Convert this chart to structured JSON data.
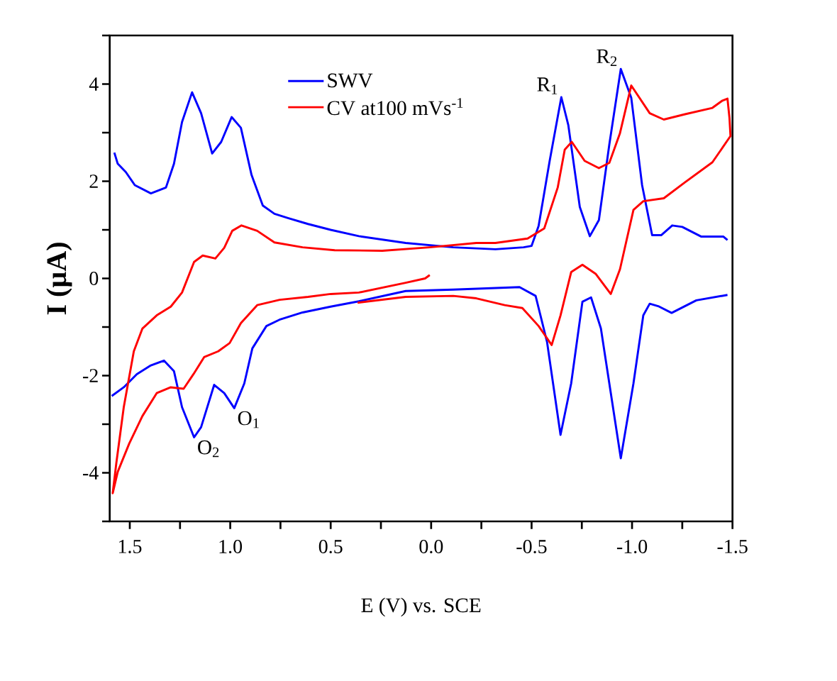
{
  "chart_data": {
    "type": "line",
    "xlabel": "E (V) vs. SCE",
    "ylabel": "I (µA)",
    "xlim": [
      1.6,
      -1.5
    ],
    "ylim": [
      -5,
      5
    ],
    "xticks": [
      1.5,
      {
        "value": 1.25,
        "label": null
      },
      {
        "value": 1,
        "label": "1.0"
      },
      {
        "value": 0.75,
        "label": null
      },
      0.5,
      {
        "value": 0.25,
        "label": null
      },
      {
        "value": 0,
        "label": "0.0"
      },
      {
        "value": -0.25,
        "label": null
      },
      -0.5,
      {
        "value": -0.75,
        "label": null
      },
      {
        "value": -1,
        "label": "-1.0"
      },
      {
        "value": -1.25,
        "label": null
      },
      -1.5
    ],
    "yticks": [
      {
        "value": -5,
        "label": null
      },
      -4,
      {
        "value": -3,
        "label": null
      },
      -2,
      {
        "value": -1,
        "label": null
      },
      0,
      {
        "value": 1,
        "label": null
      },
      2,
      {
        "value": 3,
        "label": null
      },
      4,
      {
        "value": 5,
        "label": null
      }
    ],
    "legend": "top",
    "grid": false,
    "marker": "none",
    "line_style": "solid",
    "series": [
      {
        "name": "SWV",
        "color": "#0000ff",
        "x": [
          1.577,
          1.56,
          1.52,
          1.475,
          1.395,
          1.32,
          1.28,
          1.24,
          1.19,
          1.145,
          1.09,
          1.045,
          0.993,
          0.947,
          0.894,
          0.838,
          0.78,
          0.71,
          0.613,
          0.5,
          0.36,
          0.127,
          -0.11,
          -0.32,
          -0.46,
          -0.5,
          -0.535,
          -0.59,
          -0.648,
          -0.683,
          -0.74,
          -0.79,
          -0.835,
          -0.887,
          -0.944,
          -0.996,
          -1.05,
          -1.1,
          -1.145,
          -1.2,
          -1.25,
          -1.345,
          -1.455,
          -1.475,
          null,
          1.59,
          1.53,
          1.465,
          1.395,
          1.33,
          1.28,
          1.24,
          1.18,
          1.145,
          1.08,
          1.03,
          0.98,
          0.93,
          0.89,
          0.82,
          0.755,
          0.64,
          0.5,
          0.36,
          0.127,
          -0.11,
          -0.44,
          -0.52,
          -0.577,
          -0.644,
          -0.697,
          -0.753,
          -0.796,
          -0.845,
          -0.944,
          -1.007,
          -1.056,
          -1.088,
          -1.13,
          -1.197,
          -1.32,
          -1.475
        ],
        "values": [
          2.59,
          2.36,
          2.19,
          1.92,
          1.75,
          1.87,
          2.36,
          3.22,
          3.83,
          3.4,
          2.57,
          2.81,
          3.32,
          3.1,
          2.13,
          1.5,
          1.33,
          1.24,
          1.12,
          1.0,
          0.87,
          0.73,
          0.64,
          0.6,
          0.64,
          0.67,
          1.08,
          2.42,
          3.73,
          3.15,
          1.47,
          0.87,
          1.2,
          2.76,
          4.31,
          3.72,
          1.92,
          0.89,
          0.89,
          1.09,
          1.06,
          0.86,
          0.86,
          0.79,
          null,
          -2.42,
          -2.24,
          -1.97,
          -1.79,
          -1.69,
          -1.91,
          -2.65,
          -3.27,
          -3.06,
          -2.19,
          -2.36,
          -2.67,
          -2.16,
          -1.44,
          -0.98,
          -0.85,
          -0.7,
          -0.58,
          -0.47,
          -0.26,
          -0.23,
          -0.18,
          -0.36,
          -1.31,
          -3.22,
          -2.16,
          -0.48,
          -0.39,
          -1.03,
          -3.7,
          -2.16,
          -0.76,
          -0.52,
          -0.57,
          -0.71,
          -0.45,
          -0.34
        ]
      },
      {
        "name": "CV at100 mVs$^{-1}$",
        "color": "#ff0000",
        "x": [
          0.366,
          0.127,
          -0.11,
          -0.225,
          -0.366,
          -0.454,
          -0.535,
          -0.6,
          -0.644,
          -0.697,
          -0.753,
          -0.82,
          -0.894,
          -0.94,
          -1.007,
          -1.056,
          -1.158,
          -1.264,
          -1.4,
          -1.49,
          -1.485,
          -1.475,
          -1.45,
          -1.4,
          -1.264,
          -1.158,
          -1.088,
          -0.996,
          -0.94,
          -0.887,
          -0.835,
          -0.764,
          -0.7,
          -0.665,
          -0.63,
          -0.563,
          -0.48,
          -0.32,
          -0.225,
          0.007,
          0.243,
          0.48,
          0.64,
          0.78,
          0.866,
          0.944,
          0.99,
          1.03,
          1.074,
          1.137,
          1.18,
          1.24,
          1.296,
          1.366,
          1.437,
          1.48,
          1.53,
          1.567,
          1.585,
          1.56,
          1.503,
          1.437,
          1.366,
          1.296,
          1.232,
          1.183,
          1.13,
          1.06,
          1.003,
          0.947,
          0.866,
          0.754,
          0.613,
          0.5,
          0.36,
          0.127,
          0.03,
          0.007
        ],
        "values": [
          -0.5,
          -0.38,
          -0.36,
          -0.41,
          -0.55,
          -0.61,
          -0.98,
          -1.37,
          -0.76,
          0.13,
          0.28,
          0.09,
          -0.32,
          0.19,
          1.41,
          1.59,
          1.65,
          1.98,
          2.39,
          2.93,
          3.3,
          3.7,
          3.66,
          3.51,
          3.38,
          3.27,
          3.4,
          3.97,
          2.99,
          2.38,
          2.27,
          2.42,
          2.81,
          2.65,
          1.87,
          1.03,
          0.82,
          0.73,
          0.73,
          0.64,
          0.57,
          0.58,
          0.64,
          0.74,
          0.98,
          1.09,
          0.98,
          0.63,
          0.41,
          0.47,
          0.34,
          -0.29,
          -0.58,
          -0.76,
          -1.03,
          -1.5,
          -2.65,
          -3.8,
          -4.42,
          -3.98,
          -3.4,
          -2.83,
          -2.36,
          -2.24,
          -2.27,
          -1.97,
          -1.62,
          -1.5,
          -1.33,
          -0.92,
          -0.55,
          -0.44,
          -0.38,
          -0.32,
          -0.29,
          -0.09,
          0.0,
          0.07
        ]
      }
    ],
    "annotations": [
      {
        "text": "O$_{1}$",
        "x": 0.98,
        "y": -2.67
      },
      {
        "text": "O$_{2}$",
        "x": 1.18,
        "y": -3.27
      },
      {
        "text": "R$_{1}$",
        "x": -0.648,
        "y": 3.73
      },
      {
        "text": "R$_{2}$",
        "x": -0.944,
        "y": 4.31
      }
    ]
  }
}
